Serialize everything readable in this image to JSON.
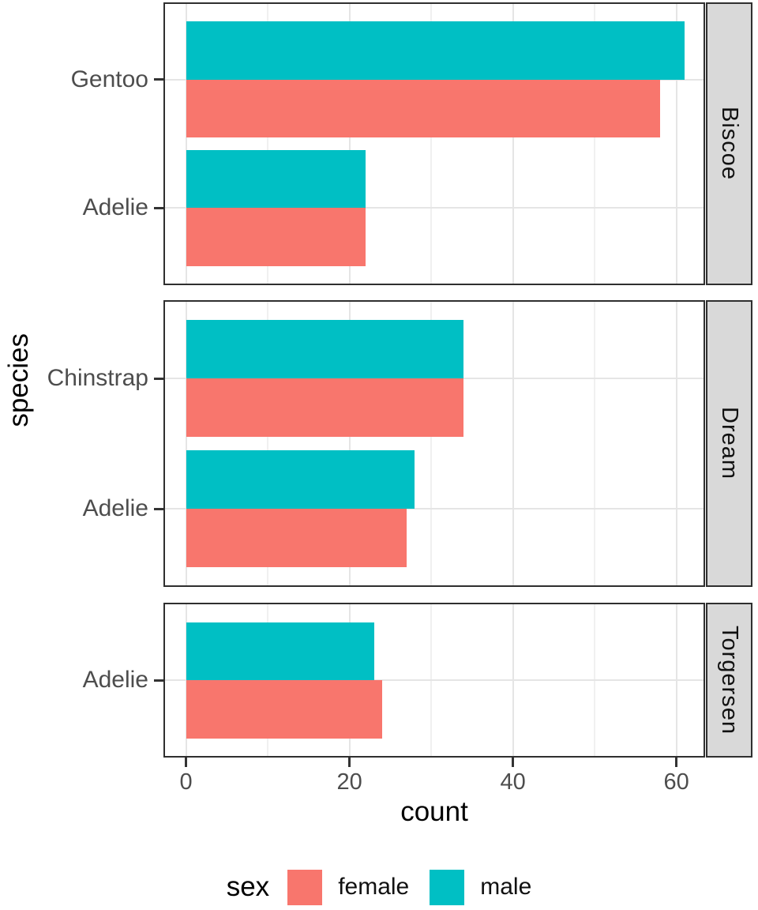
{
  "chart_data": {
    "type": "bar",
    "orientation": "horizontal",
    "xlabel": "count",
    "ylabel": "species",
    "x_ticks": [
      0,
      20,
      40,
      60
    ],
    "x_minor_ticks": [
      10,
      30,
      50
    ],
    "xlim": [
      -2.8,
      63.5
    ],
    "grid": true,
    "facet_variable": "island",
    "facet_strip_position": "right",
    "facets": [
      {
        "island": "Biscoe",
        "rows": [
          {
            "species": "Gentoo",
            "male": 61,
            "female": 58
          },
          {
            "species": "Adelie",
            "male": 22,
            "female": 22
          }
        ]
      },
      {
        "island": "Dream",
        "rows": [
          {
            "species": "Chinstrap",
            "male": 34,
            "female": 34
          },
          {
            "species": "Adelie",
            "male": 28,
            "female": 27
          }
        ]
      },
      {
        "island": "Torgersen",
        "rows": [
          {
            "species": "Adelie",
            "male": 23,
            "female": 24
          }
        ]
      }
    ],
    "series": [
      {
        "name": "female",
        "color": "#F8766D"
      },
      {
        "name": "male",
        "color": "#00BFC4"
      }
    ],
    "legend": {
      "title": "sex",
      "position": "bottom"
    },
    "theme_colors": {
      "strip_fill": "#D9D9D9",
      "panel_border": "#2F2F2F",
      "grid_major": "#E5E5E5",
      "grid_minor": "#F0F0F0",
      "axis_text": "#4D4D4D"
    }
  }
}
